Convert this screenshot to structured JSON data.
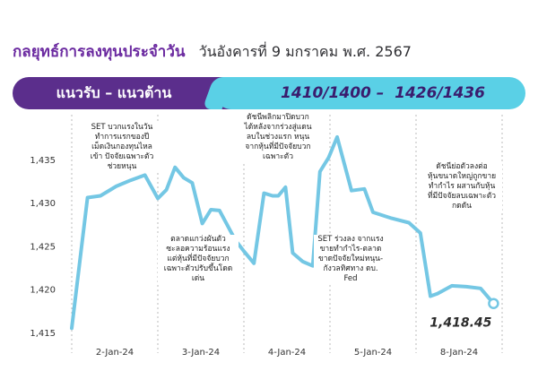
{
  "header": {
    "title": "กลยุทธ์การลงทุนประจำวัน",
    "date": "วันอังคารที่ 9 มกราคม พ.ศ. 2567"
  },
  "banner": {
    "label": "แนวรับ – แนวต้าน",
    "levels": "1410/1400 –  1426/1436"
  },
  "colors": {
    "line": "#74c7e4",
    "purple": "#5b2e8c",
    "cyan": "#5ad0e6",
    "grid": "#bbbbbb"
  },
  "chart_data": {
    "type": "line",
    "title": "",
    "xlabel": "",
    "ylabel": "",
    "ylim": [
      1415,
      1438
    ],
    "yticks": [
      1415,
      1420,
      1425,
      1430,
      1435
    ],
    "ytick_labels": [
      "1,415",
      "1,420",
      "1,425",
      "1,430",
      "1,435"
    ],
    "categories": [
      "2-Jan-24",
      "3-Jan-24",
      "4-Jan-24",
      "5-Jan-24",
      "8-Jan-24"
    ],
    "x_boundaries": [
      0,
      6,
      12,
      18,
      24,
      30
    ],
    "grid": "vertical dashed at day boundaries",
    "series": [
      {
        "name": "",
        "x": [
          0,
          1.1,
          2,
          3.1,
          4.1,
          5.1,
          6,
          6.6,
          7.2,
          7.8,
          8.4,
          9.1,
          9.7,
          10.3,
          11.4,
          12,
          12.7,
          13.4,
          14,
          14.4,
          14.9,
          15.4,
          16.1,
          16.8,
          17.3,
          17.9,
          18.5,
          19.5,
          20.4,
          21,
          22.3,
          23.5,
          24.3,
          25,
          25.5,
          26.5,
          27.5,
          28.5,
          29.4
        ],
        "values": [
          1415.6,
          1430.7,
          1430.9,
          1432,
          1432.7,
          1433.3,
          1430.6,
          1431.6,
          1434.2,
          1433,
          1432.4,
          1427.7,
          1429.3,
          1429.2,
          1425.8,
          1424.5,
          1423.1,
          1431.2,
          1430.9,
          1430.9,
          1431.9,
          1424.3,
          1423.3,
          1422.8,
          1433.7,
          1435.3,
          1437.7,
          1431.5,
          1431.7,
          1429,
          1428.3,
          1427.8,
          1426.6,
          1419.3,
          1419.6,
          1420.5,
          1420.4,
          1420.2,
          1418.45
        ]
      }
    ],
    "last_value": 1418.45,
    "last_value_label": "1,418.45",
    "annotations": [
      {
        "text": "SET บวกแรงในวัน\nทำการแรกของปี\nเม็ดเงินกองทุนไหล\nเข้า ปัจจัยเฉพาะตัว\nช่วยหนุน"
      },
      {
        "text": "ตลาดแกว่งผันตัว\nซะลอความร้อนแรง\nแต่หุ้นที่มีปัจจัยบวก\nเฉพาะตัวปรับขึ้นโดด\nเด่น"
      },
      {
        "text": "ดัชนีพลิกมาปิดบวก\nได้หลังจากร่วงสู่แดน\nลบในช่วงแรก หนุน\nจากหุ้นที่มีปัจจัยบวก\nเฉพาะตัว"
      },
      {
        "text": "SET ร่วงลง จากแรง\nขายทำกำไร-ตลาด\nขาดปัจจัยใหม่หนุน-\nกังวลทิศทาง ดบ.\nFed"
      },
      {
        "text": "ดัชนีย่อตัวลงต่อ\nหุ้นขนาดใหญ่ถูกขาย\nทำกำไร ผสานกับหุ้น\nที่มีปัจจัยลบเฉพาะตัว\nกดดัน"
      }
    ]
  }
}
